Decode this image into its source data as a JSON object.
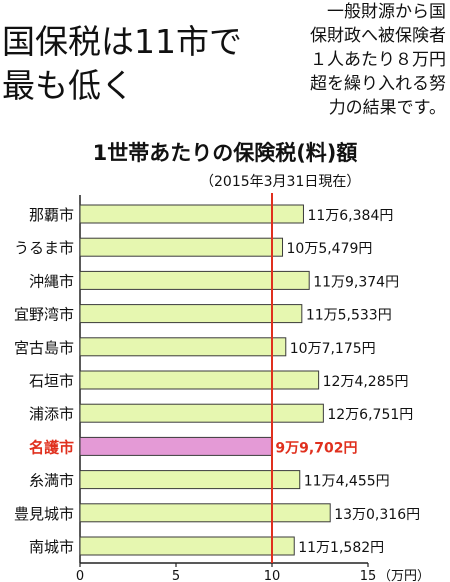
{
  "headline": [
    "国保税は11市で",
    "最も低く"
  ],
  "note": [
    "一般財源から国",
    "保財政へ被保険者",
    "１人あたり８万円",
    "超を繰り入れる努",
    "力の結果です。"
  ],
  "chart_data": {
    "type": "bar",
    "orientation": "horizontal",
    "title": "1世帯あたりの保険税(料)額",
    "subtitle": "（2015年3月31日現在）",
    "categories": [
      "那覇市",
      "うるま市",
      "沖縄市",
      "宜野湾市",
      "宮古島市",
      "石垣市",
      "浦添市",
      "名護市",
      "糸満市",
      "豊見城市",
      "南城市"
    ],
    "values": [
      116384,
      105479,
      119374,
      115533,
      107175,
      124285,
      126751,
      99702,
      114455,
      130316,
      111582
    ],
    "value_labels": [
      "11万6,384円",
      "10万5,479円",
      "11万9,374円",
      "11万5,533円",
      "10万7,175円",
      "12万4,285円",
      "12万6,751円",
      "9万9,702円",
      "11万4,455円",
      "13万0,316円",
      "11万1,582円"
    ],
    "highlight": "名護市",
    "xlim": [
      0,
      15
    ],
    "xticks": [
      0,
      5,
      10,
      15
    ],
    "x_unit_label": "（万円）",
    "reference_line": 10,
    "grid": false,
    "colors": {
      "bar": "#e6f7b0",
      "bar_stroke": "#3a3a3a",
      "highlight_bar": "#e49ad6",
      "highlight_text": "#e0301e",
      "reference_line": "#e0301e"
    }
  }
}
